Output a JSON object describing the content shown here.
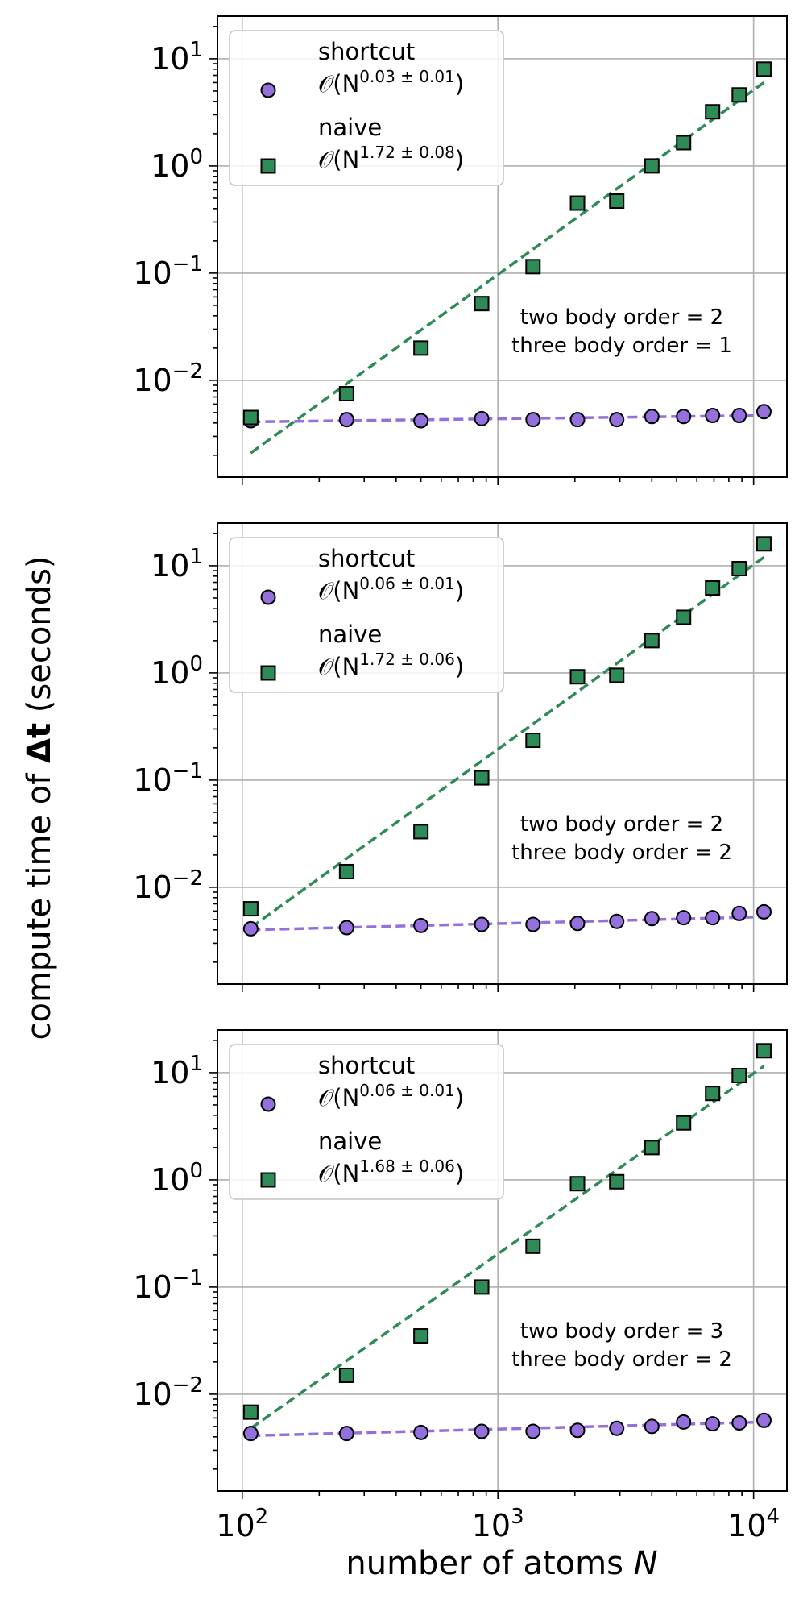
{
  "figure": {
    "ylabel_prefix": "compute time of ",
    "ylabel_symbol": "Δt",
    "ylabel_suffix": " (seconds)",
    "xlabel_prefix": "number of atoms ",
    "xlabel_var": "N"
  },
  "colors": {
    "shortcut": "#9370DB",
    "naive": "#2E8B57",
    "grid": "#b0b0b0",
    "axes": "#000000"
  },
  "chart_data": [
    {
      "type": "scatter",
      "xscale": "log",
      "yscale": "log",
      "xlim": [
        80,
        13500
      ],
      "ylim": [
        0.00125,
        25
      ],
      "yticks": [
        {
          "base": "10",
          "exp": "1",
          "value": 10
        },
        {
          "base": "10",
          "exp": "0",
          "value": 1
        },
        {
          "base": "10",
          "exp": "−1",
          "value": 0.1
        },
        {
          "base": "10",
          "exp": "−2",
          "value": 0.01
        }
      ],
      "xticks": [],
      "grid": true,
      "legend_position": "upper-left",
      "annotation": [
        "two body order = 2",
        "three body order = 1"
      ],
      "series": [
        {
          "name": "shortcut",
          "legend_math_prefix": "𝒪(N",
          "legend_exp": "0.03 ± 0.01",
          "legend_math_suffix": ")",
          "marker": "circle",
          "x": [
            108,
            256,
            500,
            864,
            1372,
            2048,
            2916,
            4000,
            5324,
            6912,
            8788,
            10976
          ],
          "y": [
            0.0042,
            0.0043,
            0.0042,
            0.0044,
            0.0043,
            0.0043,
            0.0043,
            0.0046,
            0.0046,
            0.0047,
            0.0047,
            0.0051
          ],
          "fit": [
            [
              108,
              0.0041
            ],
            [
              10976,
              0.0047
            ]
          ]
        },
        {
          "name": "naive",
          "legend_math_prefix": "𝒪(N",
          "legend_exp": "1.72 ± 0.08",
          "legend_math_suffix": ")",
          "marker": "square",
          "x": [
            108,
            256,
            500,
            864,
            1372,
            2048,
            2916,
            4000,
            5324,
            6912,
            8788,
            10976
          ],
          "y": [
            0.0045,
            0.0075,
            0.02,
            0.052,
            0.115,
            0.45,
            0.47,
            1.0,
            1.65,
            3.2,
            4.6,
            8.0
          ],
          "fit": [
            [
              108,
              0.0021
            ],
            [
              10976,
              6.0
            ]
          ]
        }
      ]
    },
    {
      "type": "scatter",
      "xscale": "log",
      "yscale": "log",
      "xlim": [
        80,
        13500
      ],
      "ylim": [
        0.00125,
        25
      ],
      "yticks": [
        {
          "base": "10",
          "exp": "1",
          "value": 10
        },
        {
          "base": "10",
          "exp": "0",
          "value": 1
        },
        {
          "base": "10",
          "exp": "−1",
          "value": 0.1
        },
        {
          "base": "10",
          "exp": "−2",
          "value": 0.01
        }
      ],
      "xticks": [],
      "grid": true,
      "legend_position": "upper-left",
      "annotation": [
        "two body order = 2",
        "three body order = 2"
      ],
      "series": [
        {
          "name": "shortcut",
          "legend_math_prefix": "𝒪(N",
          "legend_exp": "0.06 ± 0.01",
          "legend_math_suffix": ")",
          "marker": "circle",
          "x": [
            108,
            256,
            500,
            864,
            1372,
            2048,
            2916,
            4000,
            5324,
            6912,
            8788,
            10976
          ],
          "y": [
            0.0041,
            0.0042,
            0.0044,
            0.0045,
            0.0045,
            0.0046,
            0.0048,
            0.0051,
            0.0052,
            0.0052,
            0.0057,
            0.0059
          ],
          "fit": [
            [
              108,
              0.004
            ],
            [
              10976,
              0.0053
            ]
          ]
        },
        {
          "name": "naive",
          "legend_math_prefix": "𝒪(N",
          "legend_exp": "1.72 ± 0.06",
          "legend_math_suffix": ")",
          "marker": "square",
          "x": [
            108,
            256,
            500,
            864,
            1372,
            2048,
            2916,
            4000,
            5324,
            6912,
            8788,
            10976
          ],
          "y": [
            0.0063,
            0.014,
            0.033,
            0.105,
            0.235,
            0.92,
            0.95,
            2.0,
            3.3,
            6.2,
            9.4,
            16.0
          ],
          "fit": [
            [
              108,
              0.0042
            ],
            [
              10976,
              12.0
            ]
          ]
        }
      ]
    },
    {
      "type": "scatter",
      "xscale": "log",
      "yscale": "log",
      "xlim": [
        80,
        13500
      ],
      "ylim": [
        0.00125,
        25
      ],
      "yticks": [
        {
          "base": "10",
          "exp": "1",
          "value": 10
        },
        {
          "base": "10",
          "exp": "0",
          "value": 1
        },
        {
          "base": "10",
          "exp": "−1",
          "value": 0.1
        },
        {
          "base": "10",
          "exp": "−2",
          "value": 0.01
        }
      ],
      "xticks": [
        {
          "base": "10",
          "exp": "2",
          "value": 100
        },
        {
          "base": "10",
          "exp": "3",
          "value": 1000
        },
        {
          "base": "10",
          "exp": "4",
          "value": 10000
        }
      ],
      "grid": true,
      "legend_position": "upper-left",
      "annotation": [
        "two body order = 3",
        "three body order = 2"
      ],
      "series": [
        {
          "name": "shortcut",
          "legend_math_prefix": "𝒪(N",
          "legend_exp": "0.06 ± 0.01",
          "legend_math_suffix": ")",
          "marker": "circle",
          "x": [
            108,
            256,
            500,
            864,
            1372,
            2048,
            2916,
            4000,
            5324,
            6912,
            8788,
            10976
          ],
          "y": [
            0.0043,
            0.0043,
            0.0044,
            0.0045,
            0.0045,
            0.0046,
            0.0048,
            0.005,
            0.0055,
            0.0053,
            0.0054,
            0.0057
          ],
          "fit": [
            [
              108,
              0.0041
            ],
            [
              10976,
              0.0055
            ]
          ]
        },
        {
          "name": "naive",
          "legend_math_prefix": "𝒪(N",
          "legend_exp": "1.68 ± 0.06",
          "legend_math_suffix": ")",
          "marker": "square",
          "x": [
            108,
            256,
            500,
            864,
            1372,
            2048,
            2916,
            4000,
            5324,
            6912,
            8788,
            10976
          ],
          "y": [
            0.0068,
            0.015,
            0.035,
            0.1,
            0.24,
            0.92,
            0.96,
            2.0,
            3.4,
            6.4,
            9.4,
            16.0
          ],
          "fit": [
            [
              108,
              0.0048
            ],
            [
              10976,
              11.5
            ]
          ]
        }
      ]
    }
  ]
}
